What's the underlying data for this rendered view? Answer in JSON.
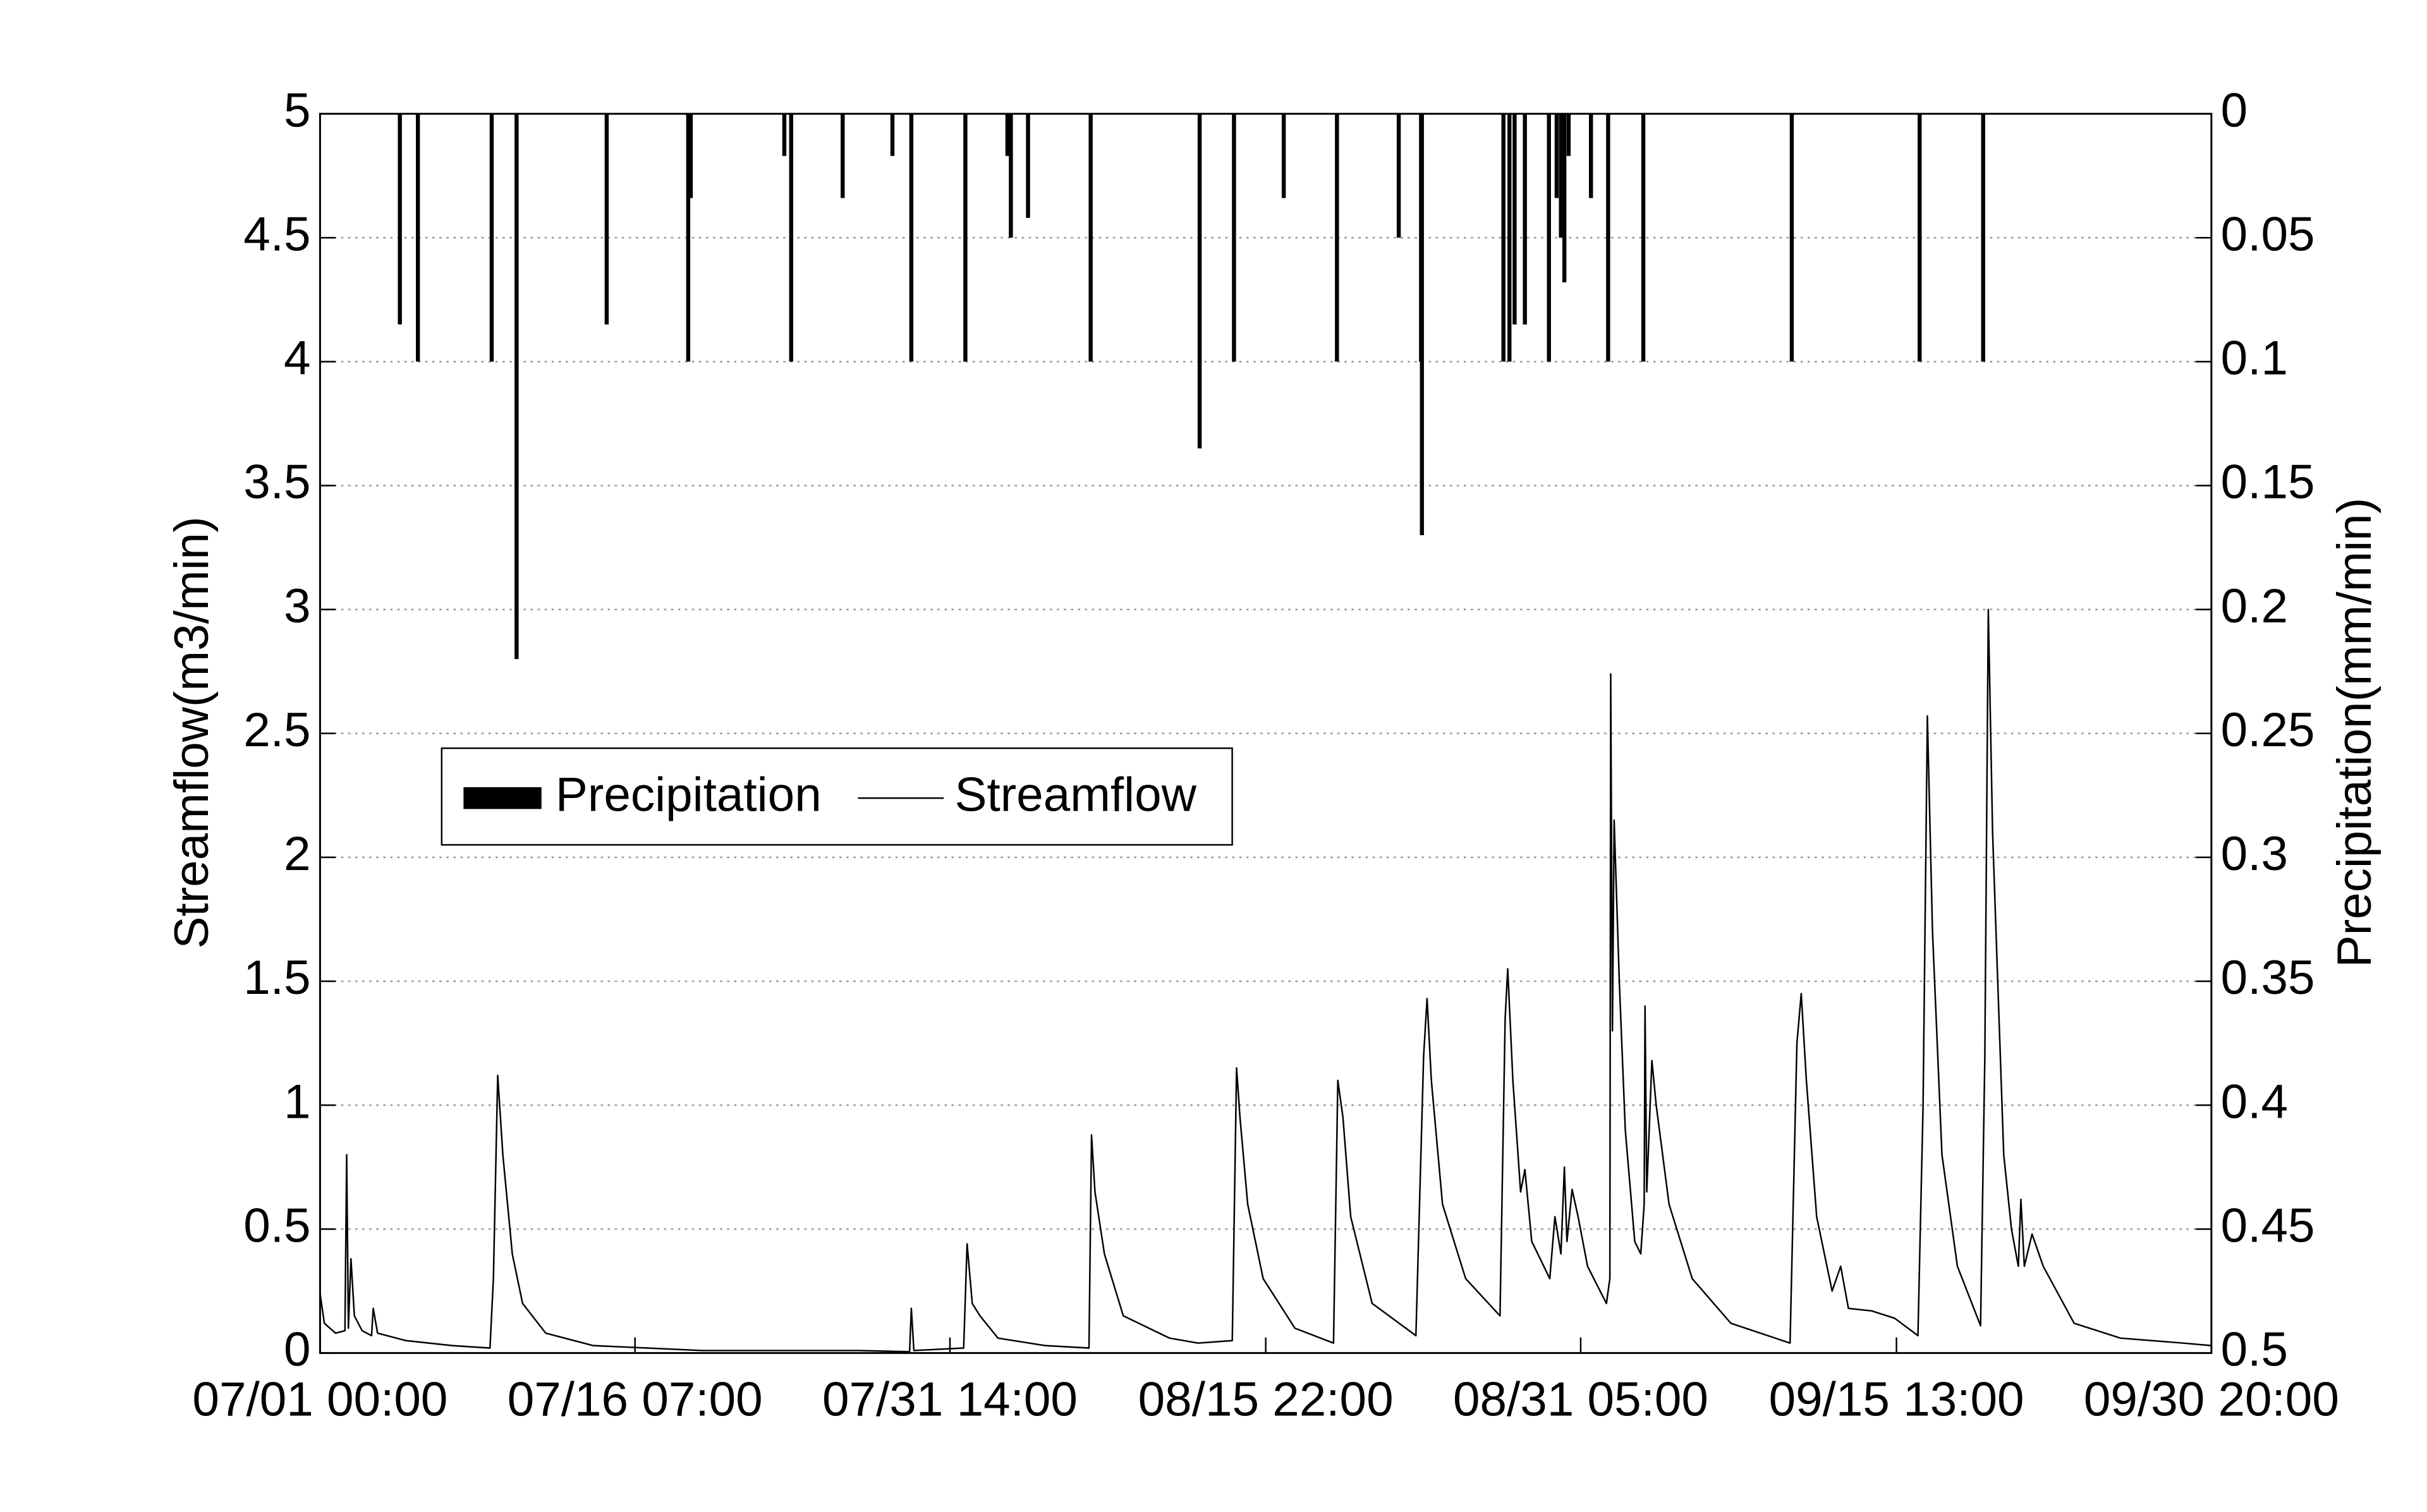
{
  "chart_data": {
    "type": "combo",
    "y_label": "Streamflow(m3/min)",
    "y2_label": "Precipitation(mm/min)",
    "xlim": [
      "07/01 00:00",
      "09/30 20:00"
    ],
    "xticks": [
      "07/01 00:00",
      "07/16 07:00",
      "07/31 14:00",
      "08/15 22:00",
      "08/31 05:00",
      "09/15 13:00",
      "09/30 20:00"
    ],
    "ylim": [
      0,
      5
    ],
    "yticks": [
      0,
      0.5,
      1,
      1.5,
      2,
      2.5,
      3,
      3.5,
      4,
      4.5,
      5
    ],
    "y2lim": [
      0,
      0.5
    ],
    "y2_inverted": true,
    "y2ticks": [
      0,
      0.05,
      0.1,
      0.15,
      0.2,
      0.25,
      0.3,
      0.35,
      0.4,
      0.45,
      0.5
    ],
    "grid": true,
    "legend": "middle left",
    "series": [
      {
        "name": "Precipitation",
        "type": "bar",
        "axis": "y2",
        "color": "#000000",
        "x": [
          "07/04 21:00",
          "07/05 18:00",
          "07/09 08:00",
          "07/10 13:00",
          "07/14 22:00",
          "07/18 21:00",
          "07/19 00:00",
          "07/23 13:00",
          "07/23 21:00",
          "07/26 09:00",
          "07/28 19:00",
          "07/29 17:00",
          "08/01 08:00",
          "08/03 09:00",
          "08/03 13:00",
          "08/04 09:00",
          "08/07 10:00",
          "08/12 17:00",
          "08/14 09:00",
          "08/16 19:00",
          "08/19 09:00",
          "08/22 09:00",
          "08/23 11:00",
          "08/23 12:00",
          "08/27 11:00",
          "08/27 18:00",
          "08/28 00:00",
          "08/28 12:00",
          "08/29 16:00",
          "08/30 01:00",
          "08/30 06:00",
          "08/30 10:00",
          "08/30 15:00",
          "08/31 17:00",
          "09/01 13:00",
          "09/03 06:00",
          "09/10 11:00",
          "09/16 16:00",
          "09/19 18:00"
        ],
        "values": [
          0.085,
          0.1,
          0.1,
          0.22,
          0.085,
          0.1,
          0.034,
          0.017,
          0.1,
          0.034,
          0.017,
          0.1,
          0.1,
          0.017,
          0.05,
          0.042,
          0.1,
          0.135,
          0.1,
          0.034,
          0.1,
          0.05,
          0.1,
          0.17,
          0.1,
          0.1,
          0.085,
          0.085,
          0.1,
          0.034,
          0.05,
          0.068,
          0.017,
          0.034,
          0.1,
          0.1,
          0.1,
          0.1,
          0.1
        ]
      },
      {
        "name": "Streamflow",
        "type": "line",
        "axis": "y",
        "color": "#000000",
        "x": [
          "07/01 00:00",
          "07/01 05:00",
          "07/01 18:00",
          "07/02 05:00",
          "07/02 07:00",
          "07/02 09:00",
          "07/02 12:00",
          "07/02 16:00",
          "07/03 01:00",
          "07/03 12:00",
          "07/03 14:00",
          "07/03 19:00",
          "07/05 04:00",
          "07/07 10:00",
          "07/09 06:00",
          "07/09 10:00",
          "07/09 15:00",
          "07/09 21:00",
          "07/10 08:00",
          "07/10 20:00",
          "07/11 23:00",
          "07/14 06:00",
          "07/19 13:00",
          "07/27 03:00",
          "07/29 15:00",
          "07/29 17:00",
          "07/29 20:00",
          "08/01 06:00",
          "08/01 10:00",
          "08/01 16:00",
          "08/02 01:00",
          "08/02 22:00",
          "08/05 05:00",
          "08/07 08:00",
          "08/07 11:00",
          "08/07 15:00",
          "08/08 02:00",
          "08/09 00:00",
          "08/11 06:00",
          "08/12 15:00",
          "08/14 07:00",
          "08/14 12:00",
          "08/14 16:00",
          "08/15 01:00",
          "08/15 19:00",
          "08/17 08:00",
          "08/19 05:00",
          "08/19 10:00",
          "08/19 16:00",
          "08/20 01:00",
          "08/21 02:00",
          "08/23 05:00",
          "08/23 14:00",
          "08/23 18:00",
          "08/23 23:00",
          "08/24 12:00",
          "08/25 15:00",
          "08/27 07:00",
          "08/27 13:00",
          "08/27 16:00",
          "08/27 22:00",
          "08/28 07:00",
          "08/28 12:00",
          "08/28 20:00",
          "08/29 10:00",
          "08/29 17:00",
          "08/29 23:00",
          "08/30 06:00",
          "08/30 10:00",
          "08/30 13:00",
          "08/30 19:00",
          "08/31 02:00",
          "08/31 13:00",
          "09/01 11:00",
          "09/01 15:00",
          "09/01 16:00",
          "09/01 18:00",
          "09/01 20:00",
          "09/02 02:00",
          "09/02 09:00",
          "09/02 20:00",
          "09/03 03:00",
          "09/03 07:00",
          "09/03 08:00",
          "09/03 10:00",
          "09/03 16:00",
          "09/03 21:00",
          "09/04 12:00",
          "09/05 15:00",
          "09/07 12:00",
          "09/10 09:00",
          "09/10 17:00",
          "09/10 22:00",
          "09/11 04:00",
          "09/11 16:00",
          "09/12 10:00",
          "09/12 20:00",
          "09/13 05:00",
          "09/14 08:00",
          "09/15 11:00",
          "09/16 14:00",
          "09/16 20:00",
          "09/17 01:00",
          "09/17 07:00",
          "09/17 18:00",
          "09/18 12:00",
          "09/19 15:00",
          "09/19 20:00",
          "09/20 00:00",
          "09/20 05:00",
          "09/20 18:00",
          "09/21 03:00",
          "09/21 11:00",
          "09/21 14:00",
          "09/21 18:00",
          "09/22 03:00",
          "09/22 16:00",
          "09/24 04:00",
          "09/26 10:00",
          "09/29 11:00",
          "09/30 20:00"
        ],
        "values": [
          0.24,
          0.12,
          0.08,
          0.09,
          0.8,
          0.1,
          0.38,
          0.15,
          0.09,
          0.07,
          0.18,
          0.08,
          0.05,
          0.03,
          0.02,
          0.3,
          1.12,
          0.8,
          0.4,
          0.2,
          0.08,
          0.03,
          0.01,
          0.01,
          0.005,
          0.18,
          0.01,
          0.02,
          0.44,
          0.2,
          0.15,
          0.06,
          0.03,
          0.02,
          0.88,
          0.65,
          0.4,
          0.15,
          0.06,
          0.04,
          0.05,
          1.15,
          0.95,
          0.6,
          0.3,
          0.1,
          0.04,
          1.1,
          0.95,
          0.55,
          0.2,
          0.07,
          1.2,
          1.43,
          1.1,
          0.6,
          0.3,
          0.15,
          1.35,
          1.55,
          1.1,
          0.65,
          0.74,
          0.45,
          0.35,
          0.3,
          0.55,
          0.4,
          0.75,
          0.45,
          0.66,
          0.55,
          0.35,
          0.2,
          0.3,
          2.74,
          1.3,
          2.15,
          1.5,
          0.9,
          0.45,
          0.4,
          0.6,
          1.4,
          0.65,
          1.18,
          1.0,
          0.6,
          0.3,
          0.12,
          0.04,
          1.25,
          1.45,
          1.1,
          0.55,
          0.25,
          0.35,
          0.18,
          0.17,
          0.14,
          0.07,
          1.0,
          2.57,
          1.7,
          0.8,
          0.35,
          0.11,
          1.2,
          3.0,
          2.1,
          0.8,
          0.5,
          0.35,
          0.62,
          0.35,
          0.48,
          0.35,
          0.12,
          0.06,
          0.04,
          0.03
        ]
      }
    ]
  }
}
